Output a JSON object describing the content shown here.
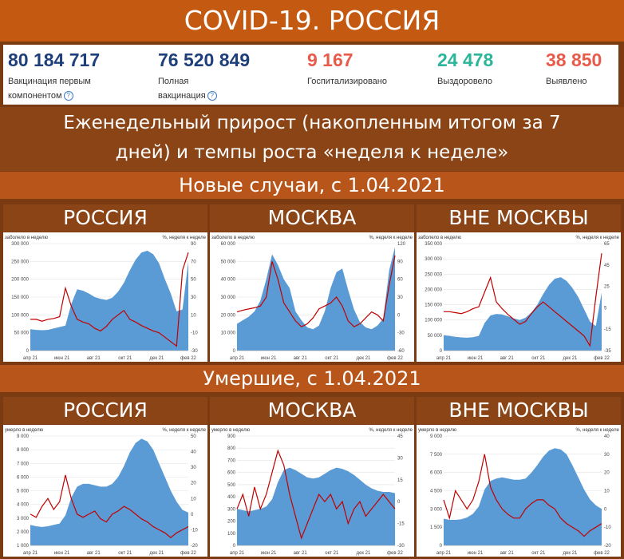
{
  "title": "COVID-19. РОССИЯ",
  "stats": [
    {
      "value": "80 184 717",
      "label1": "Вакцинация первым",
      "label2": "компонентом",
      "help": true,
      "color": "#1e3f7a"
    },
    {
      "value": "76 520 849",
      "label1": "Полная",
      "label2": "вакцинация",
      "help": true,
      "color": "#1e3f7a"
    },
    {
      "value": "9 167",
      "label1": "Госпитализировано",
      "label2": "",
      "help": false,
      "color": "#e85b4a"
    },
    {
      "value": "24 478",
      "label1": "Выздоровело",
      "label2": "",
      "help": false,
      "color": "#2bb59a"
    },
    {
      "value": "38 850",
      "label1": "Выявлено",
      "label2": "",
      "help": false,
      "color": "#e85b4a"
    }
  ],
  "weekly_line1": "Еженедельный прирост (накопленным итогом за 7",
  "weekly_line2": "дней) и темпы роста «неделя к неделе»",
  "cases_header": "Новые случаи, с 1.04.2021",
  "deaths_header": "Умершие, с 1.04.2021",
  "regions": [
    "РОССИЯ",
    "МОСКВА",
    "ВНЕ МОСКВЫ"
  ],
  "colors": {
    "area": "#5b9bd5",
    "line": "#c00000"
  },
  "chart_data": [
    {
      "type": "area",
      "panel": "cases-russia",
      "left_label": "заболело в неделю",
      "right_label": "%, неделя к неделе",
      "x_ticks": [
        "апр 21",
        "июн 21",
        "авг 21",
        "окт 21",
        "дек 21",
        "фев 22"
      ],
      "ylim": [
        0,
        300000
      ],
      "y_ticks": [
        "0",
        "50 000",
        "100 000",
        "150 000",
        "200 000",
        "250 000",
        "300 000"
      ],
      "y2lim": [
        -30,
        90
      ],
      "y2_ticks": [
        "-30",
        "-10",
        "10",
        "30",
        "50",
        "70",
        "90"
      ],
      "area": [
        60000,
        58000,
        57000,
        58000,
        62000,
        66000,
        70000,
        130000,
        172000,
        168000,
        160000,
        150000,
        145000,
        142000,
        148000,
        165000,
        190000,
        225000,
        255000,
        275000,
        280000,
        270000,
        245000,
        200000,
        160000,
        110000,
        115000,
        250000
      ],
      "rate": [
        5,
        5,
        3,
        5,
        6,
        8,
        40,
        20,
        5,
        2,
        0,
        -5,
        -8,
        -3,
        5,
        10,
        15,
        5,
        2,
        -2,
        -5,
        -8,
        -10,
        -15,
        -20,
        -25,
        60,
        80
      ]
    },
    {
      "type": "area",
      "panel": "cases-moscow",
      "left_label": "заболело в неделю",
      "right_label": "%, неделя к неделе",
      "x_ticks": [
        "апр 21",
        "июн 21",
        "авг 21",
        "окт 21",
        "дек 21",
        "фев 22"
      ],
      "ylim": [
        0,
        60000
      ],
      "y_ticks": [
        "0",
        "10 000",
        "20 000",
        "30 000",
        "40 000",
        "50 000",
        "60 000"
      ],
      "y2lim": [
        -60,
        120
      ],
      "y2_ticks": [
        "-60",
        "-30",
        "0",
        "30",
        "60",
        "90",
        "120"
      ],
      "area": [
        15000,
        17000,
        19000,
        22000,
        28000,
        40000,
        54000,
        48000,
        40000,
        35000,
        22000,
        17000,
        13000,
        12000,
        14000,
        22000,
        35000,
        44000,
        46000,
        34000,
        23000,
        16000,
        13000,
        12000,
        14000,
        18000,
        45000,
        58000
      ],
      "rate": [
        5,
        8,
        10,
        12,
        15,
        30,
        90,
        60,
        20,
        5,
        -10,
        -20,
        -15,
        -5,
        10,
        15,
        20,
        30,
        15,
        -10,
        -20,
        -15,
        -5,
        5,
        0,
        -10,
        50,
        100
      ]
    },
    {
      "type": "area",
      "panel": "cases-outside-moscow",
      "left_label": "заболело в неделю",
      "right_label": "%, неделя к неделе",
      "x_ticks": [
        "апр 21",
        "июн 21",
        "авг 21",
        "окт 21",
        "дек 21",
        "фев 22"
      ],
      "ylim": [
        0,
        350000
      ],
      "y_ticks": [
        "0",
        "50 000",
        "100 000",
        "150 000",
        "200 000",
        "250 000",
        "300 000",
        "350 000"
      ],
      "y2lim": [
        -35,
        75
      ],
      "y2_ticks": [
        "-35",
        "-15",
        "5",
        "25",
        "45",
        "65"
      ],
      "area": [
        50000,
        48000,
        45000,
        43000,
        42000,
        44000,
        48000,
        90000,
        115000,
        120000,
        118000,
        112000,
        105000,
        100000,
        108000,
        125000,
        150000,
        185000,
        215000,
        235000,
        240000,
        228000,
        205000,
        175000,
        135000,
        95000,
        80000,
        190000
      ],
      "rate": [
        5,
        5,
        4,
        3,
        5,
        8,
        10,
        25,
        40,
        15,
        8,
        2,
        -3,
        -8,
        -5,
        3,
        10,
        15,
        10,
        5,
        0,
        -5,
        -10,
        -15,
        -20,
        -30,
        20,
        65
      ]
    },
    {
      "type": "area",
      "panel": "deaths-russia",
      "left_label": "умерло в неделю",
      "right_label": "%, неделя к неделе",
      "x_ticks": [
        "апр 21",
        "июн 21",
        "авг 21",
        "окт 21",
        "дек 21",
        "фев 22"
      ],
      "ylim": [
        1000,
        9000
      ],
      "y_ticks": [
        "1 000",
        "2 000",
        "3 000",
        "4 000",
        "5 000",
        "6 000",
        "7 000",
        "8 000",
        "9 000"
      ],
      "y2lim": [
        -20,
        50
      ],
      "y2_ticks": [
        "-20",
        "-10",
        "0",
        "10",
        "20",
        "30",
        "40",
        "50"
      ],
      "area": [
        2500,
        2400,
        2350,
        2400,
        2500,
        2600,
        3200,
        4500,
        5300,
        5500,
        5500,
        5400,
        5300,
        5300,
        5500,
        6000,
        6800,
        7800,
        8500,
        8800,
        8600,
        8000,
        7000,
        6000,
        5000,
        4200,
        3600,
        3400
      ],
      "rate": [
        0,
        -2,
        5,
        10,
        3,
        8,
        25,
        10,
        0,
        -2,
        0,
        2,
        -3,
        -5,
        0,
        2,
        5,
        3,
        0,
        -3,
        -5,
        -8,
        -10,
        -12,
        -15,
        -12,
        -10,
        -8
      ]
    },
    {
      "type": "area",
      "panel": "deaths-moscow",
      "left_label": "умерло в неделю",
      "right_label": "%, неделя к неделе",
      "x_ticks": [
        "апр 21",
        "июн 21",
        "авг 21",
        "окт 21",
        "дек 21",
        "фев 22"
      ],
      "ylim": [
        0,
        900
      ],
      "y_ticks": [
        "0",
        "100",
        "200",
        "300",
        "400",
        "500",
        "600",
        "700",
        "800",
        "900"
      ],
      "y2lim": [
        -30,
        45
      ],
      "y2_ticks": [
        "-30",
        "-15",
        "0",
        "15",
        "30",
        "45"
      ],
      "area": [
        300,
        290,
        280,
        290,
        300,
        320,
        380,
        520,
        620,
        640,
        620,
        590,
        560,
        550,
        560,
        590,
        620,
        640,
        630,
        610,
        580,
        540,
        500,
        470,
        450,
        440,
        440,
        430
      ],
      "rate": [
        -5,
        5,
        -10,
        10,
        -5,
        5,
        20,
        35,
        25,
        5,
        -10,
        -25,
        -15,
        -5,
        5,
        0,
        5,
        -5,
        0,
        -15,
        -5,
        0,
        -10,
        -5,
        0,
        5,
        0,
        -5
      ]
    },
    {
      "type": "area",
      "panel": "deaths-outside-moscow",
      "left_label": "умерло в неделю",
      "right_label": "%, неделя к неделе",
      "x_ticks": [
        "апр 21",
        "июн 21",
        "авг 21",
        "окт 21",
        "дек 21",
        "фев 22"
      ],
      "ylim": [
        0,
        9000
      ],
      "y_ticks": [
        "0",
        "1 500",
        "3 000",
        "4 500",
        "6 000",
        "7 500",
        "9 000"
      ],
      "y2lim": [
        -20,
        40
      ],
      "y2_ticks": [
        "-20",
        "-10",
        "0",
        "10",
        "20",
        "30",
        "40"
      ],
      "area": [
        2200,
        2100,
        2100,
        2150,
        2300,
        2600,
        3200,
        4600,
        5300,
        5500,
        5600,
        5500,
        5400,
        5400,
        5500,
        6000,
        6600,
        7300,
        7800,
        8000,
        7900,
        7500,
        6600,
        5600,
        4600,
        3800,
        3300,
        3000
      ],
      "rate": [
        5,
        -5,
        10,
        5,
        0,
        5,
        15,
        30,
        12,
        5,
        0,
        -3,
        -5,
        -5,
        0,
        3,
        5,
        5,
        2,
        0,
        -5,
        -8,
        -10,
        -12,
        -15,
        -12,
        -10,
        -8
      ]
    }
  ]
}
